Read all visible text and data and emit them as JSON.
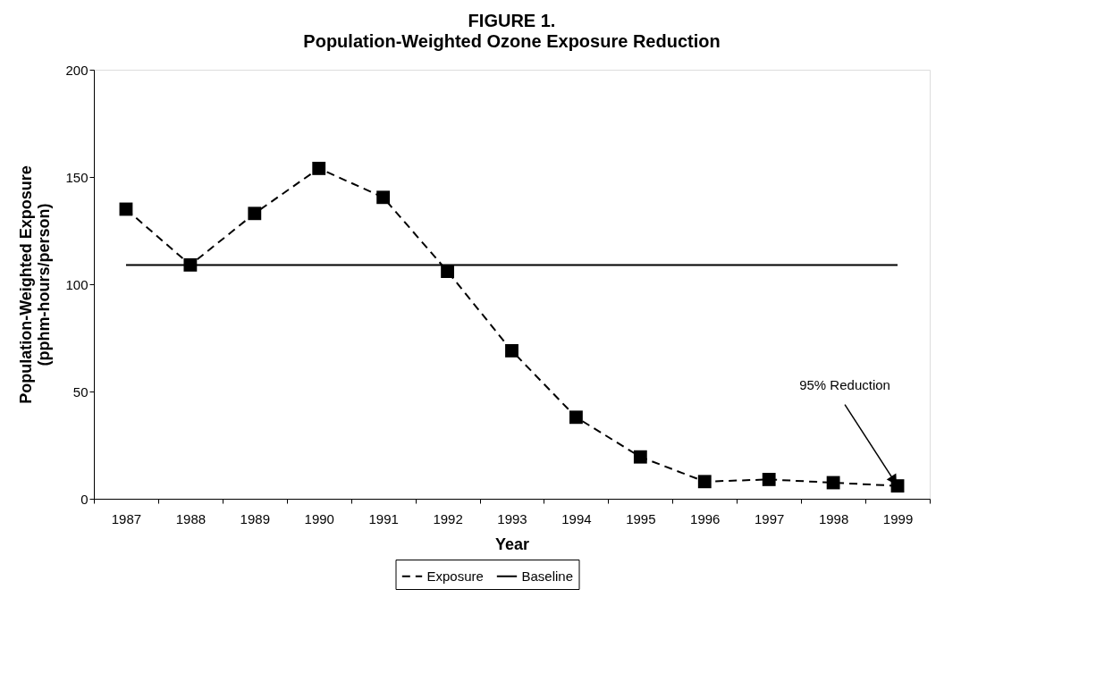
{
  "chart_data": {
    "type": "line",
    "title": "FIGURE 1.",
    "subtitle": "Population-Weighted Ozone Exposure Reduction",
    "xlabel": "Year",
    "ylabel": "Population-Weighted Exposure\n(pphm-hours/person)",
    "categories": [
      "1987",
      "1988",
      "1989",
      "1990",
      "1991",
      "1992",
      "1993",
      "1994",
      "1995",
      "1996",
      "1997",
      "1998",
      "1999"
    ],
    "series": [
      {
        "name": "Exposure",
        "color": "#000000",
        "marker": "square",
        "line_style": "dashed",
        "values": [
          135,
          109,
          133,
          154,
          140.5,
          106,
          69,
          38,
          19.5,
          8,
          9,
          7.5,
          6
        ]
      },
      {
        "name": "Baseline",
        "color": "#000000",
        "marker": "none",
        "line_style": "solid",
        "values": [
          109,
          109,
          109,
          109,
          109,
          109,
          109,
          109,
          109,
          109,
          109,
          109,
          109
        ]
      }
    ],
    "ylim": [
      0,
      200
    ],
    "yticks": [
      0,
      50,
      100,
      150,
      200
    ],
    "grid": false,
    "legend": "bottom",
    "annotations": [
      {
        "text": "95% Reduction",
        "x": "1999",
        "y": 6
      }
    ]
  }
}
